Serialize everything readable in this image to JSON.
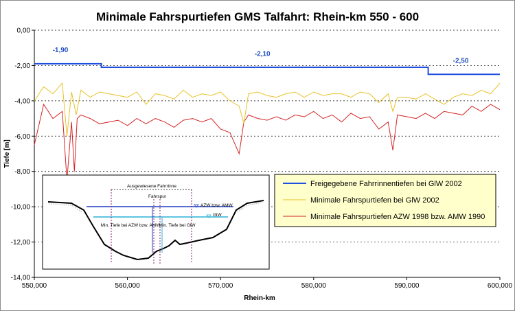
{
  "chart_data": {
    "type": "line",
    "title": "Minimale Fahrspurtiefen GMS Talfahrt: Rhein-km 550 - 600",
    "xlabel": "Rhein-km",
    "ylabel": "Tiefe [m]",
    "xlim": [
      550,
      600
    ],
    "ylim": [
      -14,
      0
    ],
    "x_ticks": [
      "550,000",
      "560,000",
      "570,000",
      "580,000",
      "590,000",
      "600,000"
    ],
    "y_ticks": [
      "0,00",
      "-2,00",
      "-4,00",
      "-6,00",
      "-8,00",
      "-10,00",
      "-12,00",
      "-14,00"
    ],
    "grid": "horizontal dotted",
    "legend_position": "bottom-right",
    "annotations": [
      "-1,90",
      "-2,10",
      "-2,50"
    ],
    "series": [
      {
        "name": "Freigegebene Fahrrinnentiefen bei GlW 2002",
        "color": "#1f4fe0",
        "style": "step",
        "x": [
          550,
          557.2,
          557.2,
          592.3,
          592.3,
          600
        ],
        "y": [
          -1.9,
          -1.9,
          -2.1,
          -2.1,
          -2.5,
          -2.5
        ]
      },
      {
        "name": "Minimale Fahrspurtiefen bei GlW 2002",
        "color": "#e8c22a",
        "x": [
          550,
          551,
          552,
          553,
          553.5,
          554,
          554.5,
          555,
          556,
          557,
          558,
          559,
          560,
          561,
          562,
          563,
          564,
          565,
          566,
          567,
          568,
          569,
          570,
          571,
          572,
          572.5,
          573,
          574,
          575,
          576,
          577,
          578,
          579,
          580,
          581,
          582,
          583,
          584,
          585,
          586,
          587,
          588,
          588.5,
          589,
          590,
          591,
          592,
          593,
          594,
          595,
          596,
          597,
          598,
          599,
          600
        ],
        "y": [
          -4.0,
          -3.2,
          -3.6,
          -3.0,
          -6.0,
          -3.5,
          -4.8,
          -3.4,
          -3.8,
          -3.5,
          -3.6,
          -3.7,
          -3.8,
          -3.5,
          -4.2,
          -3.6,
          -3.7,
          -3.9,
          -3.4,
          -3.8,
          -3.6,
          -3.7,
          -3.5,
          -4.0,
          -4.3,
          -5.3,
          -3.6,
          -3.5,
          -3.7,
          -3.8,
          -3.6,
          -3.5,
          -3.8,
          -3.5,
          -3.7,
          -3.6,
          -3.6,
          -3.8,
          -3.5,
          -3.6,
          -4.1,
          -3.6,
          -4.6,
          -3.8,
          -3.8,
          -3.9,
          -3.6,
          -3.9,
          -4.2,
          -3.8,
          -3.6,
          -3.7,
          -3.4,
          -3.6,
          -3.0
        ]
      },
      {
        "name": "Minimale Fahrspurtiefen AZW 1998 bzw. AMW 1990",
        "color": "#d42424",
        "x": [
          550,
          551,
          552,
          553,
          553.5,
          554,
          554.3,
          554.6,
          555,
          556,
          557,
          558,
          559,
          560,
          561,
          562,
          563,
          564,
          565,
          566,
          567,
          568,
          569,
          570,
          571,
          572,
          572.5,
          573,
          574,
          575,
          576,
          577,
          578,
          579,
          580,
          581,
          582,
          583,
          584,
          585,
          586,
          587,
          588,
          588.5,
          589,
          590,
          591,
          592,
          593,
          594,
          595,
          596,
          597,
          598,
          599,
          600
        ],
        "y": [
          -6.5,
          -4.2,
          -5.0,
          -4.6,
          -8.5,
          -5.2,
          -8.0,
          -5.0,
          -4.8,
          -5.0,
          -5.3,
          -5.2,
          -5.1,
          -5.4,
          -5.0,
          -5.3,
          -5.0,
          -5.2,
          -5.5,
          -5.1,
          -5.0,
          -5.2,
          -5.0,
          -5.6,
          -5.8,
          -7.0,
          -5.2,
          -4.8,
          -5.0,
          -5.1,
          -4.9,
          -5.1,
          -4.8,
          -4.9,
          -4.6,
          -5.0,
          -4.8,
          -5.2,
          -4.7,
          -5.0,
          -4.9,
          -5.6,
          -5.2,
          -6.8,
          -4.8,
          -4.9,
          -5.0,
          -4.7,
          -5.0,
          -4.6,
          -4.7,
          -4.8,
          -4.3,
          -4.6,
          -4.2,
          -4.5
        ]
      }
    ],
    "inset": {
      "labels": {
        "top": "Ausgewiesene Fahrrinne",
        "fahrspur": "Fahrspur",
        "azw": "AZW bzw. AMW",
        "glw": "GlW",
        "min_azw": "Min. Tiefe bei AZW bzw. AMW",
        "min_glw": "Min. Tiefe bei GlW"
      }
    }
  }
}
